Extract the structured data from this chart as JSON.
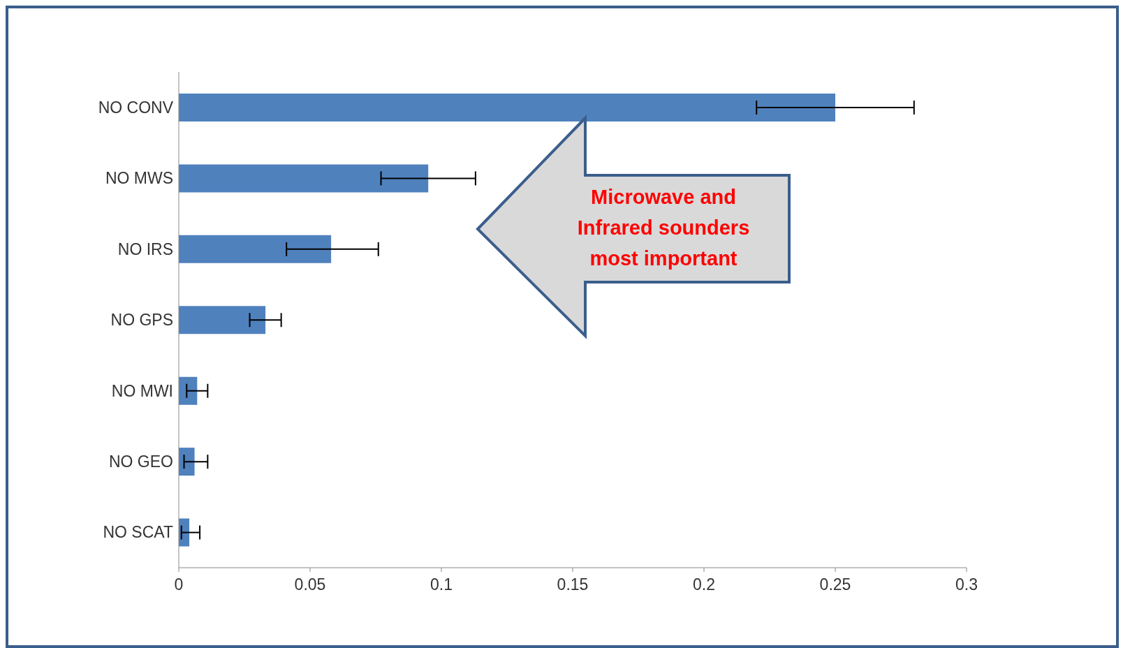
{
  "chart_data": {
    "type": "bar",
    "orientation": "horizontal",
    "categories": [
      "NO CONV",
      "NO MWS",
      "NO IRS",
      "NO GPS",
      "NO MWI",
      "NO GEO",
      "NO SCAT"
    ],
    "values": [
      0.25,
      0.095,
      0.058,
      0.033,
      0.007,
      0.006,
      0.004
    ],
    "errors": [
      [
        0.22,
        0.28
      ],
      [
        0.077,
        0.113
      ],
      [
        0.041,
        0.076
      ],
      [
        0.027,
        0.039
      ],
      [
        0.003,
        0.011
      ],
      [
        0.002,
        0.011
      ],
      [
        0.001,
        0.008
      ]
    ],
    "color": "#4f81bd",
    "xlim": [
      0,
      0.3
    ],
    "xticks": [
      0,
      0.05,
      0.1,
      0.15,
      0.2,
      0.25,
      0.3
    ],
    "grid": false,
    "legend": false,
    "annotations": [
      "Microwave and Infrared sounders most important"
    ]
  }
}
